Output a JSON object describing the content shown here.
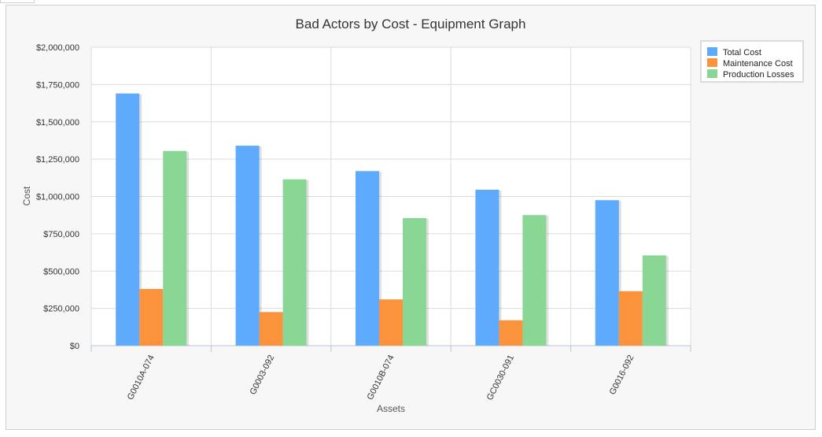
{
  "chart_data": {
    "type": "bar",
    "title": "Bad Actors by Cost - Equipment Graph",
    "xlabel": "Assets",
    "ylabel": "Cost",
    "categories": [
      "G0010A-074",
      "G0003-092",
      "G0010B-074",
      "GC0030-091",
      "G0016-092"
    ],
    "series": [
      {
        "name": "Total Cost",
        "color": "#5eaafc",
        "values": [
          1690000,
          1340000,
          1170000,
          1045000,
          975000
        ]
      },
      {
        "name": "Maintenance Cost",
        "color": "#fb923c",
        "values": [
          380000,
          225000,
          310000,
          170000,
          365000
        ]
      },
      {
        "name": "Production Losses",
        "color": "#8ad694",
        "values": [
          1305000,
          1115000,
          855000,
          875000,
          605000
        ]
      }
    ],
    "ylim": [
      0,
      2000000
    ],
    "yticks": [
      0,
      250000,
      500000,
      750000,
      1000000,
      1250000,
      1500000,
      1750000,
      2000000
    ],
    "ytick_labels": [
      "$0",
      "$250,000",
      "$500,000",
      "$750,000",
      "$1,000,000",
      "$1,250,000",
      "$1,500,000",
      "$1,750,000",
      "$2,000,000"
    ],
    "grid": true,
    "legend_position": "top-right"
  }
}
